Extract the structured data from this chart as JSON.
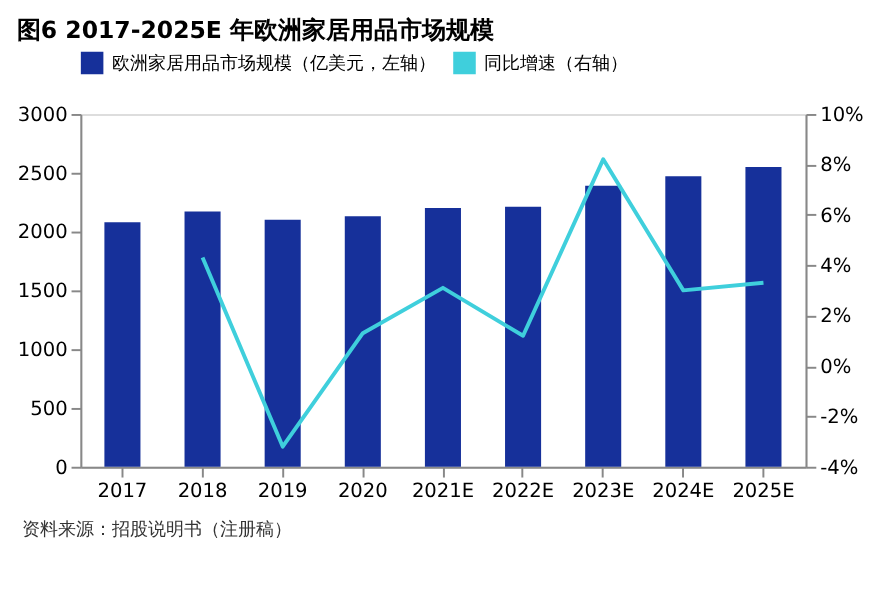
{
  "chart_data": {
    "type": "bar",
    "title": "图6   2017-2025E 年欧洲家居用品市场规模",
    "categories": [
      "2017",
      "2018",
      "2019",
      "2020",
      "2021E",
      "2022E",
      "2023E",
      "2024E",
      "2025E"
    ],
    "series": [
      {
        "name": "欧洲家居用品市场规模（亿美元，左轴）",
        "color": "#16309a",
        "values": [
          2080,
          2170,
          2100,
          2130,
          2200,
          2210,
          2390,
          2470,
          2550
        ]
      },
      {
        "name": "同比增速（右轴）",
        "type": "line",
        "axis": "y2",
        "color": "#3fcfdc",
        "values": [
          null,
          4.3,
          -3.2,
          1.3,
          3.1,
          1.2,
          8.2,
          3.0,
          3.3
        ]
      }
    ],
    "ylim": [
      0,
      3000
    ],
    "yticks": [
      0,
      500,
      1000,
      1500,
      2000,
      2500,
      3000
    ],
    "y2lim": [
      -4,
      10
    ],
    "y2ticks": [
      {
        "value": -4,
        "label": "-4%"
      },
      {
        "value": -2,
        "label": "-2%"
      },
      {
        "value": 0,
        "label": "0%"
      },
      {
        "value": 2,
        "label": "2%"
      },
      {
        "value": 4,
        "label": "4%"
      },
      {
        "value": 6,
        "label": "6%"
      },
      {
        "value": 8,
        "label": "8%"
      },
      {
        "value": 10,
        "label": "10%"
      }
    ],
    "legend": "top",
    "annotations": [
      "资料来源：招股说明书（注册稿）"
    ]
  }
}
